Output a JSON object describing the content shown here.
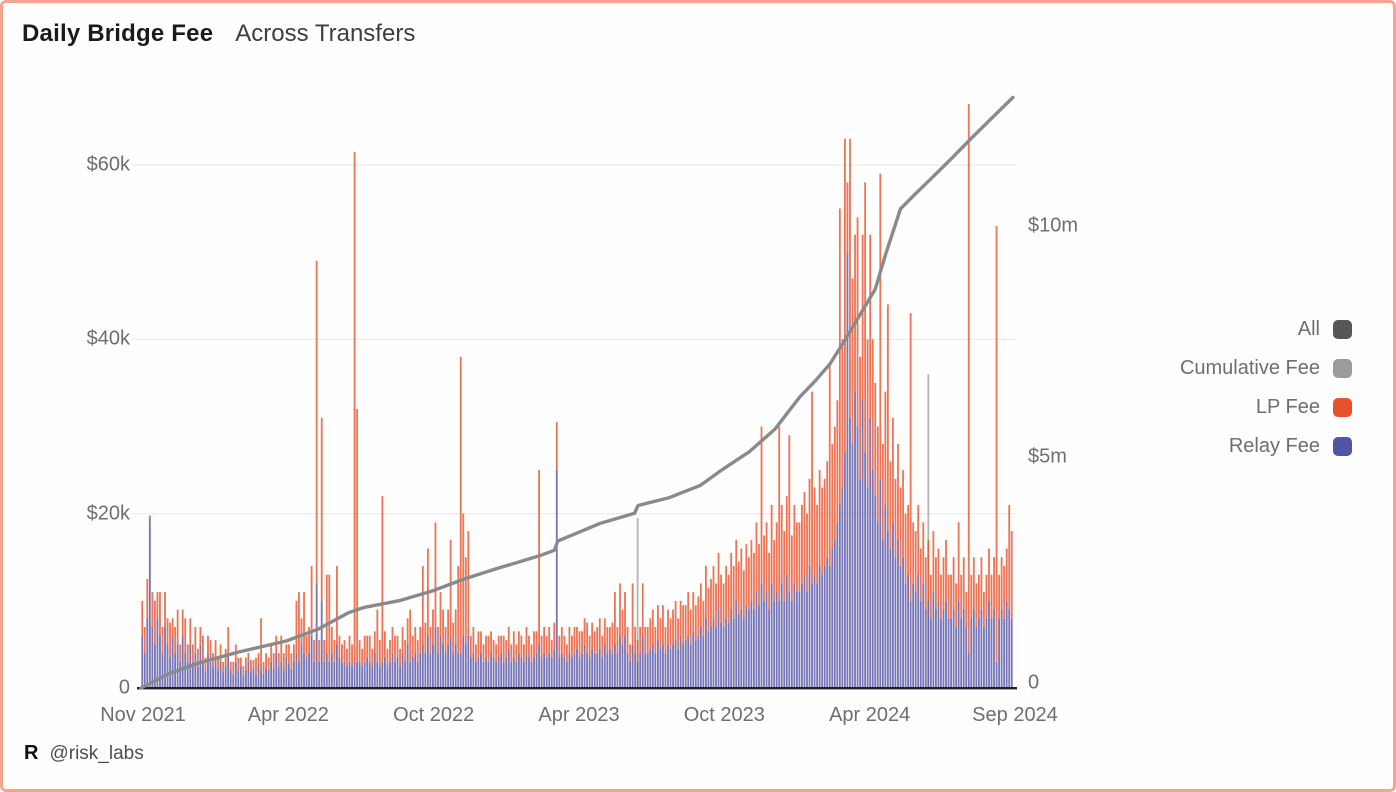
{
  "header": {
    "title": "Daily Bridge Fee",
    "subtitle": "Across Transfers"
  },
  "footer": {
    "logo": "R",
    "handle": "@risk_labs"
  },
  "legend": {
    "position": "right-outside",
    "items": [
      {
        "name": "all",
        "label": "All",
        "color": "#54565a"
      },
      {
        "name": "cumulative-fee",
        "label": "Cumulative Fee",
        "color": "#9b9b9b"
      },
      {
        "name": "lp-fee",
        "label": "LP Fee",
        "color": "#e8512b"
      },
      {
        "name": "relay-fee",
        "label": "Relay Fee",
        "color": "#5452a4"
      }
    ]
  },
  "colors": {
    "card_border": "#f5a48f",
    "lp_bar": "#e8512b",
    "relay_bar": "#5452a4",
    "all_bar": "#b0ada9",
    "cumulative_line": "#8a8a8a",
    "gridline": "#ececec",
    "baseline": "#211f2b",
    "tick_text": "#6e6e6e"
  },
  "chart_data": {
    "type": "bar",
    "combo": "stacked daily bars (Relay Fee bottom + LP Fee top, left axis, $ thousands) with Cumulative Fee line (right axis, $ millions); occasional gray 'All' total-only bars",
    "title": "Daily Bridge Fee",
    "subtitle": "Across Transfers",
    "x_ticks": [
      "Nov 2021",
      "Apr 2022",
      "Oct 2022",
      "Apr 2023",
      "Oct 2023",
      "Apr 2024",
      "Sep 2024"
    ],
    "x_range": "Nov 2021 to Sep 2024, daily values downsampled to 345 points",
    "left_axis": {
      "unit": "USD thousands per day",
      "ylim": [
        0,
        68.6
      ],
      "ticks": [
        {
          "v": 0,
          "label": "0"
        },
        {
          "v": 20,
          "label": "$20k"
        },
        {
          "v": 40,
          "label": "$40k"
        },
        {
          "v": 60,
          "label": "$60k"
        }
      ]
    },
    "right_axis": {
      "unit": "USD millions cumulative",
      "ylim": [
        0,
        12.94
      ],
      "ticks": [
        {
          "v": 0,
          "label": "0"
        },
        {
          "v": 5,
          "label": "$5m"
        },
        {
          "v": 10,
          "label": "$10m"
        }
      ]
    },
    "grid": "faint horizontal gridlines at left-axis ticks, dark baseline at 0",
    "legend_position": "right of plot",
    "series": [
      {
        "name": "Relay Fee",
        "role": "stacked-bar-bottom",
        "axis": "left",
        "color": "#5452a4"
      },
      {
        "name": "LP Fee",
        "role": "stacked-bar-top",
        "axis": "left",
        "color": "#e8512b"
      },
      {
        "name": "All",
        "role": "total-only-gray-bars",
        "axis": "left",
        "color": "#b0ada9"
      },
      {
        "name": "Cumulative Fee",
        "role": "line",
        "axis": "right",
        "color": "#8a8a8a"
      }
    ],
    "bars_relay_lp_k": [
      [
        6,
        4
      ],
      [
        4,
        3
      ],
      [
        8,
        4.5
      ],
      [
        19.5,
        0.3
      ],
      [
        7,
        4
      ],
      [
        5,
        5
      ],
      [
        8,
        3
      ],
      [
        6,
        5
      ],
      [
        4,
        3
      ],
      [
        7,
        4
      ],
      [
        5,
        3
      ],
      [
        3.5,
        4
      ],
      [
        6,
        2
      ],
      [
        4,
        3
      ],
      [
        5,
        4
      ],
      [
        3,
        2
      ],
      [
        6,
        3
      ],
      [
        4,
        4
      ],
      [
        3,
        2
      ],
      [
        5,
        3
      ],
      [
        3,
        2
      ],
      [
        4,
        3
      ],
      [
        2.5,
        2
      ],
      [
        5,
        2
      ],
      [
        3,
        3
      ],
      [
        2,
        1.5
      ],
      [
        4,
        2
      ],
      [
        3,
        2.5
      ],
      [
        2.5,
        1.5
      ],
      [
        3.5,
        2
      ],
      [
        2,
        1.5
      ],
      [
        3,
        2
      ],
      [
        1.8,
        1.2
      ],
      [
        2.5,
        2
      ],
      [
        4,
        3
      ],
      [
        2,
        1
      ],
      [
        1.5,
        1.5
      ],
      [
        3,
        2
      ],
      [
        2,
        1.5
      ],
      [
        2.5,
        1
      ],
      [
        1.5,
        1
      ],
      [
        2,
        1.5
      ],
      [
        3,
        1
      ],
      [
        1.8,
        1.4
      ],
      [
        2.2,
        1
      ],
      [
        1.5,
        2
      ],
      [
        2.8,
        1.2
      ],
      [
        2,
        6
      ],
      [
        1.6,
        1.4
      ],
      [
        2.4,
        1.6
      ],
      [
        2,
        1.5
      ],
      [
        3,
        2
      ],
      [
        2.2,
        1.8
      ],
      [
        4,
        2
      ],
      [
        2.5,
        1.5
      ],
      [
        3,
        3
      ],
      [
        2,
        2
      ],
      [
        3.5,
        1.5
      ],
      [
        2.8,
        2.2
      ],
      [
        2.2,
        1.8
      ],
      [
        3,
        2
      ],
      [
        4,
        6
      ],
      [
        3,
        8
      ],
      [
        5,
        3
      ],
      [
        4,
        7
      ],
      [
        3.5,
        2.5
      ],
      [
        4,
        3
      ],
      [
        6,
        8
      ],
      [
        3,
        2.5
      ],
      [
        12,
        37
      ],
      [
        3,
        2.5
      ],
      [
        10,
        21
      ],
      [
        3,
        2.5
      ],
      [
        4,
        9
      ],
      [
        3,
        10
      ],
      [
        4,
        3
      ],
      [
        3,
        2.5
      ],
      [
        5,
        9
      ],
      [
        3.5,
        2.5
      ],
      [
        3,
        2
      ],
      [
        3,
        2.5
      ],
      [
        2.5,
        2
      ],
      [
        3,
        3
      ],
      [
        2.5,
        2.5
      ],
      [
        3,
        58.5
      ],
      [
        3,
        29
      ],
      [
        3,
        2.5
      ],
      [
        2.5,
        2
      ],
      [
        3,
        3
      ],
      [
        3.5,
        2.5
      ],
      [
        3,
        3
      ],
      [
        2.5,
        2
      ],
      [
        4,
        2.5
      ],
      [
        3,
        6
      ],
      [
        2.5,
        3
      ],
      [
        3,
        19
      ],
      [
        3.5,
        3
      ],
      [
        2.5,
        2
      ],
      [
        3,
        2.5
      ],
      [
        4,
        3
      ],
      [
        3,
        3
      ],
      [
        3.5,
        2.5
      ],
      [
        2.5,
        2
      ],
      [
        4,
        3
      ],
      [
        3,
        2.5
      ],
      [
        5,
        3
      ],
      [
        3,
        6
      ],
      [
        3.5,
        2.5
      ],
      [
        4,
        3
      ],
      [
        3,
        2.5
      ],
      [
        4,
        3
      ],
      [
        5,
        9
      ],
      [
        4,
        3.5
      ],
      [
        6,
        10
      ],
      [
        4,
        3
      ],
      [
        5,
        4
      ],
      [
        7,
        12
      ],
      [
        4,
        3
      ],
      [
        6,
        5
      ],
      [
        5,
        4
      ],
      [
        4,
        3
      ],
      [
        5,
        4
      ],
      [
        6,
        11
      ],
      [
        4,
        3.5
      ],
      [
        5,
        4
      ],
      [
        4,
        10
      ],
      [
        4,
        34
      ],
      [
        6,
        14
      ],
      [
        5,
        10
      ],
      [
        6,
        12
      ],
      [
        3.5,
        2.5
      ],
      [
        4,
        3
      ],
      [
        3,
        2
      ],
      [
        3.5,
        3
      ],
      [
        4,
        2.5
      ],
      [
        3,
        2
      ],
      [
        3.5,
        2.5
      ],
      [
        3,
        3
      ],
      [
        4,
        2.5
      ],
      [
        3.5,
        2
      ],
      [
        3,
        2
      ],
      [
        3.5,
        2.5
      ],
      [
        4,
        2
      ],
      [
        3,
        3
      ],
      [
        3.5,
        2
      ],
      [
        4.5,
        2.5
      ],
      [
        3,
        2
      ],
      [
        3.5,
        3
      ],
      [
        3,
        2
      ],
      [
        4,
        2.5
      ],
      [
        3.5,
        2.5
      ],
      [
        3,
        2
      ],
      [
        4,
        3
      ],
      [
        3.5,
        2.5
      ],
      [
        3,
        2
      ],
      [
        3.5,
        3
      ],
      [
        4,
        2.5
      ],
      [
        5,
        20
      ],
      [
        3.5,
        2.5
      ],
      [
        4,
        3
      ],
      [
        3.5,
        2.5
      ],
      [
        4,
        3
      ],
      [
        3.5,
        2
      ],
      [
        4.5,
        3
      ],
      [
        25,
        5.5
      ],
      [
        3.5,
        2.5
      ],
      [
        4,
        3
      ],
      [
        3.5,
        2.5
      ],
      [
        3,
        2
      ],
      [
        4,
        3
      ],
      [
        3.5,
        2.5
      ],
      [
        4,
        3
      ],
      [
        4.5,
        2.5
      ],
      [
        3.5,
        3
      ],
      [
        4,
        2.5
      ],
      [
        5,
        3
      ],
      [
        4,
        3.5
      ],
      [
        3.5,
        2.5
      ],
      [
        4.5,
        3
      ],
      [
        4,
        2.5
      ],
      [
        4,
        3
      ],
      [
        4.5,
        3.5
      ],
      [
        3.5,
        2.5
      ],
      [
        5,
        3
      ],
      [
        4,
        3
      ],
      [
        4.5,
        2.5
      ],
      [
        4,
        3.5
      ],
      [
        5,
        6
      ],
      [
        4,
        3
      ],
      [
        6,
        6
      ],
      [
        5,
        4
      ],
      [
        6,
        5
      ],
      [
        4,
        3
      ],
      [
        3,
        2
      ],
      [
        5,
        7
      ],
      [
        4,
        3
      ],
      [
        3,
        2.5
      ],
      [
        4,
        3
      ],
      [
        6,
        6
      ],
      [
        4,
        3
      ],
      [
        4,
        3
      ],
      [
        4.5,
        3.5
      ],
      [
        5,
        4
      ],
      [
        4,
        3
      ],
      [
        5.5,
        4
      ],
      [
        4.5,
        3.5
      ],
      [
        5,
        4.5
      ],
      [
        4,
        3
      ],
      [
        5,
        4
      ],
      [
        4.5,
        3.5
      ],
      [
        5,
        4
      ],
      [
        5.5,
        4.5
      ],
      [
        4.5,
        3.5
      ],
      [
        6,
        4
      ],
      [
        5,
        4.5
      ],
      [
        5.5,
        4
      ],
      [
        6,
        5
      ],
      [
        5,
        4
      ],
      [
        6.5,
        4.5
      ],
      [
        5.5,
        4
      ],
      [
        6,
        4.5
      ],
      [
        7,
        5
      ],
      [
        6,
        4
      ],
      [
        8,
        6
      ],
      [
        6.5,
        5
      ],
      [
        7,
        5.5
      ],
      [
        8,
        6
      ],
      [
        7,
        5
      ],
      [
        9,
        6.5
      ],
      [
        7.5,
        5.5
      ],
      [
        7,
        5
      ],
      [
        8,
        6
      ],
      [
        7.5,
        5.5
      ],
      [
        9,
        6.5
      ],
      [
        8,
        6
      ],
      [
        10,
        7
      ],
      [
        8.5,
        6
      ],
      [
        9,
        7
      ],
      [
        8,
        5.5
      ],
      [
        9.5,
        7
      ],
      [
        9,
        6
      ],
      [
        10,
        7
      ],
      [
        9,
        6.5
      ],
      [
        11,
        8
      ],
      [
        9.5,
        7
      ],
      [
        12,
        18
      ],
      [
        10,
        7.5
      ],
      [
        11,
        8
      ],
      [
        9,
        6.5
      ],
      [
        12,
        9
      ],
      [
        10,
        7
      ],
      [
        11,
        8
      ],
      [
        10,
        20
      ],
      [
        12,
        9
      ],
      [
        10,
        8
      ],
      [
        13,
        9
      ],
      [
        11,
        18
      ],
      [
        10,
        7.5
      ],
      [
        12,
        9
      ],
      [
        11,
        8
      ],
      [
        11,
        8
      ],
      [
        12,
        9
      ],
      [
        13,
        9.5
      ],
      [
        11,
        9
      ],
      [
        14,
        10
      ],
      [
        12,
        22
      ],
      [
        13,
        10
      ],
      [
        12,
        9
      ],
      [
        14,
        11
      ],
      [
        13,
        10
      ],
      [
        14,
        10
      ],
      [
        15,
        11
      ],
      [
        14,
        23
      ],
      [
        16,
        12
      ],
      [
        17,
        13
      ],
      [
        19,
        14
      ],
      [
        21,
        34
      ],
      [
        23,
        17
      ],
      [
        27,
        36
      ],
      [
        50,
        8
      ],
      [
        31,
        32
      ],
      [
        28,
        19
      ],
      [
        34,
        18
      ],
      [
        30,
        24
      ],
      [
        24,
        14
      ],
      [
        33,
        19
      ],
      [
        27,
        31
      ],
      [
        23,
        17
      ],
      [
        31,
        21
      ],
      [
        25,
        15
      ],
      [
        22,
        13
      ],
      [
        19,
        11
      ],
      [
        24,
        35
      ],
      [
        17,
        11
      ],
      [
        21,
        13
      ],
      [
        18,
        26
      ],
      [
        16,
        10
      ],
      [
        19,
        12
      ],
      [
        15,
        9
      ],
      [
        17,
        11
      ],
      [
        14,
        9
      ],
      [
        15,
        10
      ],
      [
        12,
        8
      ],
      [
        13,
        8
      ],
      [
        10,
        33
      ],
      [
        12,
        7
      ],
      [
        11,
        7
      ],
      [
        13,
        8
      ],
      [
        10,
        6
      ],
      [
        12,
        7
      ],
      [
        9,
        6
      ],
      [
        10,
        7
      ],
      [
        8,
        5
      ],
      [
        11,
        7
      ],
      [
        9,
        6
      ],
      [
        10,
        6
      ],
      [
        8,
        5
      ],
      [
        9,
        6
      ],
      [
        10,
        7
      ],
      [
        8,
        5
      ],
      [
        8,
        5
      ],
      [
        9,
        6
      ],
      [
        7,
        5
      ],
      [
        10,
        9
      ],
      [
        8,
        5
      ],
      [
        9,
        6
      ],
      [
        7,
        4
      ],
      [
        4,
        63
      ],
      [
        8,
        5
      ],
      [
        9,
        6
      ],
      [
        7,
        5
      ],
      [
        8,
        5
      ],
      [
        9,
        6
      ],
      [
        7,
        4
      ],
      [
        8,
        5
      ],
      [
        10,
        6
      ],
      [
        8,
        5
      ],
      [
        9,
        6
      ],
      [
        3,
        50
      ],
      [
        8,
        5
      ],
      [
        9,
        6
      ],
      [
        8,
        6
      ],
      [
        10,
        6
      ],
      [
        9,
        12
      ],
      [
        8,
        10
      ]
    ],
    "all_only_bars": [
      {
        "i": 196,
        "total_k": 19.5
      },
      {
        "i": 311,
        "total_k": 36
      }
    ],
    "cumulative_fee_m": [
      [
        0,
        0
      ],
      [
        0.031,
        0.3
      ],
      [
        0.066,
        0.54
      ],
      [
        0.112,
        0.78
      ],
      [
        0.167,
        1.02
      ],
      [
        0.204,
        1.28
      ],
      [
        0.238,
        1.63
      ],
      [
        0.255,
        1.74
      ],
      [
        0.296,
        1.89
      ],
      [
        0.334,
        2.1
      ],
      [
        0.371,
        2.36
      ],
      [
        0.411,
        2.6
      ],
      [
        0.457,
        2.86
      ],
      [
        0.474,
        2.98
      ],
      [
        0.478,
        3.18
      ],
      [
        0.501,
        3.36
      ],
      [
        0.526,
        3.56
      ],
      [
        0.566,
        3.78
      ],
      [
        0.57,
        3.95
      ],
      [
        0.606,
        4.12
      ],
      [
        0.641,
        4.38
      ],
      [
        0.667,
        4.73
      ],
      [
        0.698,
        5.12
      ],
      [
        0.727,
        5.6
      ],
      [
        0.756,
        6.31
      ],
      [
        0.773,
        6.64
      ],
      [
        0.79,
        7.01
      ],
      [
        0.808,
        7.55
      ],
      [
        0.825,
        8.09
      ],
      [
        0.842,
        8.63
      ],
      [
        0.854,
        9.39
      ],
      [
        0.871,
        10.37
      ],
      [
        0.888,
        10.69
      ],
      [
        0.906,
        11.02
      ],
      [
        0.929,
        11.45
      ],
      [
        0.952,
        11.89
      ],
      [
        0.975,
        12.32
      ],
      [
        1.0,
        12.78
      ]
    ]
  }
}
